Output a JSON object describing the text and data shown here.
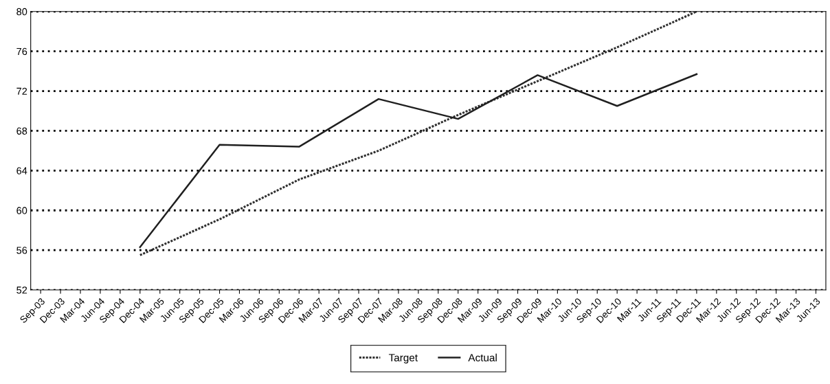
{
  "chart_data": {
    "type": "line",
    "categories": [
      "Sep-03",
      "Dec-03",
      "Mar-04",
      "Jun-04",
      "Sep-04",
      "Dec-04",
      "Mar-05",
      "Jun-05",
      "Sep-05",
      "Dec-05",
      "Mar-06",
      "Jun-06",
      "Sep-06",
      "Dec-06",
      "Mar-07",
      "Jun-07",
      "Sep-07",
      "Dec-07",
      "Mar-08",
      "Jun-08",
      "Sep-08",
      "Dec-08",
      "Mar-09",
      "Jun-09",
      "Sep-09",
      "Dec-09",
      "Mar-10",
      "Jun-10",
      "Sep-10",
      "Dec-10",
      "Mar-11",
      "Jun-11",
      "Sep-11",
      "Dec-11",
      "Mar-12",
      "Jun-12",
      "Sep-12",
      "Dec-12",
      "Mar-13",
      "Jun-13"
    ],
    "series": [
      {
        "name": "Target",
        "color": "#303030",
        "line_style": "dotted",
        "values": [
          null,
          null,
          null,
          null,
          null,
          55.5,
          null,
          null,
          null,
          59.1,
          null,
          null,
          null,
          63.1,
          null,
          null,
          null,
          66.0,
          null,
          null,
          null,
          69.6,
          null,
          null,
          null,
          73.0,
          null,
          null,
          null,
          76.4,
          null,
          null,
          null,
          80.0,
          null,
          null,
          null,
          null,
          null,
          null
        ]
      },
      {
        "name": "Actual",
        "color": "#202020",
        "line_style": "solid",
        "values": [
          null,
          null,
          null,
          null,
          null,
          56.3,
          null,
          null,
          null,
          66.6,
          null,
          null,
          null,
          66.4,
          null,
          null,
          null,
          71.2,
          null,
          null,
          null,
          69.2,
          null,
          null,
          null,
          73.6,
          null,
          null,
          null,
          70.5,
          null,
          null,
          null,
          73.7,
          null,
          null,
          null,
          null,
          null,
          null
        ]
      }
    ],
    "ylim": [
      52,
      80
    ],
    "yticks": [
      52,
      56,
      60,
      64,
      68,
      72,
      76,
      80
    ],
    "grid": "y",
    "legend": "bottom"
  }
}
